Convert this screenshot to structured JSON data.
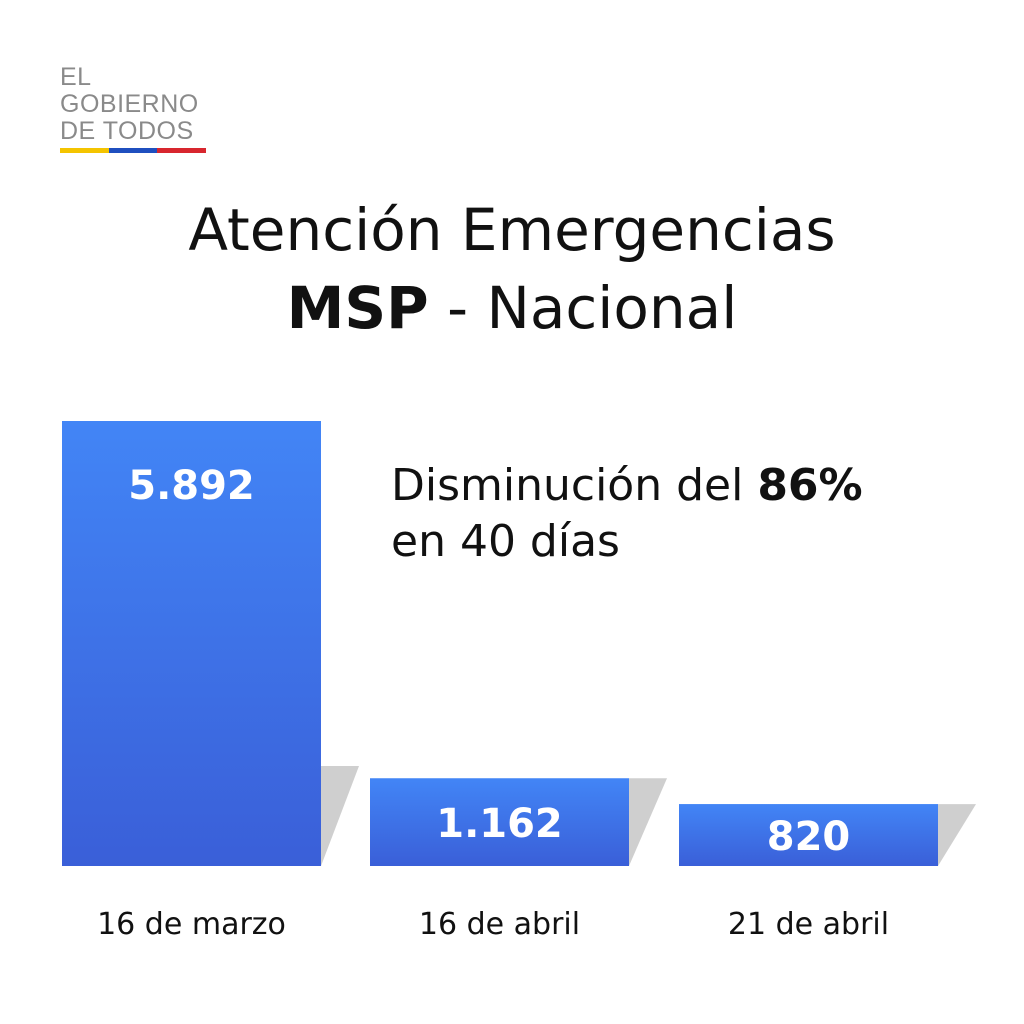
{
  "logo": {
    "lines": [
      "EL",
      "GOBIERNO",
      "DE TODOS"
    ],
    "flag_colors": [
      "#f4c400",
      "#1f4fbf",
      "#d8262e"
    ]
  },
  "colors": {
    "bar_top": "#4285f6",
    "bar_bottom": "#3a5fd8",
    "shadow": "#cfcfcf"
  },
  "annotation": {
    "prefix": "Disminución del ",
    "highlight": "86%",
    "line2": "en 40 días"
  },
  "chart_data": {
    "type": "bar",
    "title_line1": "Atención Emergencias",
    "title_line2_bold": "MSP",
    "title_line2_rest": " - Nacional",
    "categories": [
      "16 de marzo",
      "16 de abril",
      "21 de abril"
    ],
    "values": [
      5892,
      1162,
      820
    ],
    "value_labels": [
      "5.892",
      "1.162",
      "820"
    ],
    "xlabel": "",
    "ylabel": "",
    "grid": false,
    "legend": "none"
  }
}
